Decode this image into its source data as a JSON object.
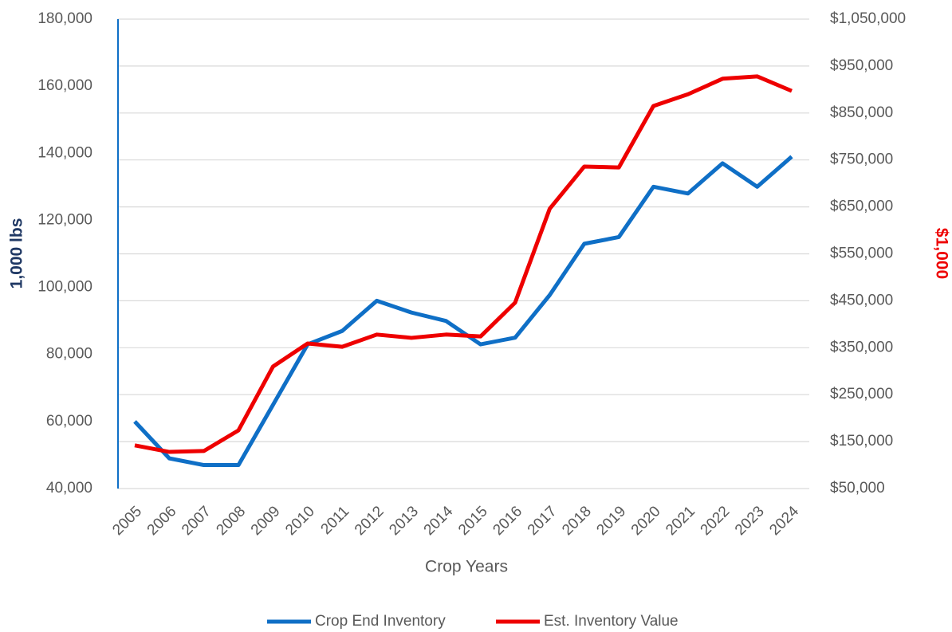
{
  "chart_data": {
    "type": "line",
    "x_label": "Crop Years",
    "y_label": "1,000 lbs",
    "y2_label": "$1,000",
    "categories": [
      "2005",
      "2006",
      "2007",
      "2008",
      "2009",
      "2010",
      "2011",
      "2012",
      "2013",
      "2014",
      "2015",
      "2016",
      "2017",
      "2018",
      "2019",
      "2020",
      "2021",
      "2022",
      "2023",
      "2024"
    ],
    "series": [
      {
        "name": "Crop End Inventory",
        "color": "#0f6fc6",
        "axis": "y",
        "values": [
          60000,
          49000,
          47000,
          47000,
          65000,
          83000,
          87000,
          96000,
          92500,
          90000,
          83000,
          85000,
          97700,
          113000,
          115000,
          130000,
          128000,
          137000,
          130000,
          139000
        ]
      },
      {
        "name": "Est. Inventory Value",
        "color": "#ee0000",
        "axis": "y2",
        "values": [
          142000,
          128000,
          130000,
          174000,
          310000,
          359000,
          352000,
          378000,
          371000,
          378000,
          374000,
          446000,
          646000,
          736000,
          734000,
          865000,
          890000,
          923000,
          928000,
          897000
        ]
      }
    ],
    "ylim": [
      40000,
      180000
    ],
    "yticks": [
      {
        "value": 40000,
        "label": "40,000"
      },
      {
        "value": 60000,
        "label": "60,000"
      },
      {
        "value": 80000,
        "label": "80,000"
      },
      {
        "value": 100000,
        "label": "100,000"
      },
      {
        "value": 120000,
        "label": "120,000"
      },
      {
        "value": 140000,
        "label": "140,000"
      },
      {
        "value": 160000,
        "label": "160,000"
      },
      {
        "value": 180000,
        "label": "180,000"
      }
    ],
    "y2lim": [
      50000,
      1050000
    ],
    "y2ticks": [
      {
        "value": 50000,
        "label": "$50,000"
      },
      {
        "value": 150000,
        "label": "$150,000"
      },
      {
        "value": 250000,
        "label": "$250,000"
      },
      {
        "value": 350000,
        "label": "$350,000"
      },
      {
        "value": 450000,
        "label": "$450,000"
      },
      {
        "value": 550000,
        "label": "$550,000"
      },
      {
        "value": 650000,
        "label": "$650,000"
      },
      {
        "value": 750000,
        "label": "$750,000"
      },
      {
        "value": 850000,
        "label": "$850,000"
      },
      {
        "value": 950000,
        "label": "$950,000"
      },
      {
        "value": 1050000,
        "label": "$1,050,000"
      }
    ],
    "grid": true,
    "legend": "bottom"
  }
}
